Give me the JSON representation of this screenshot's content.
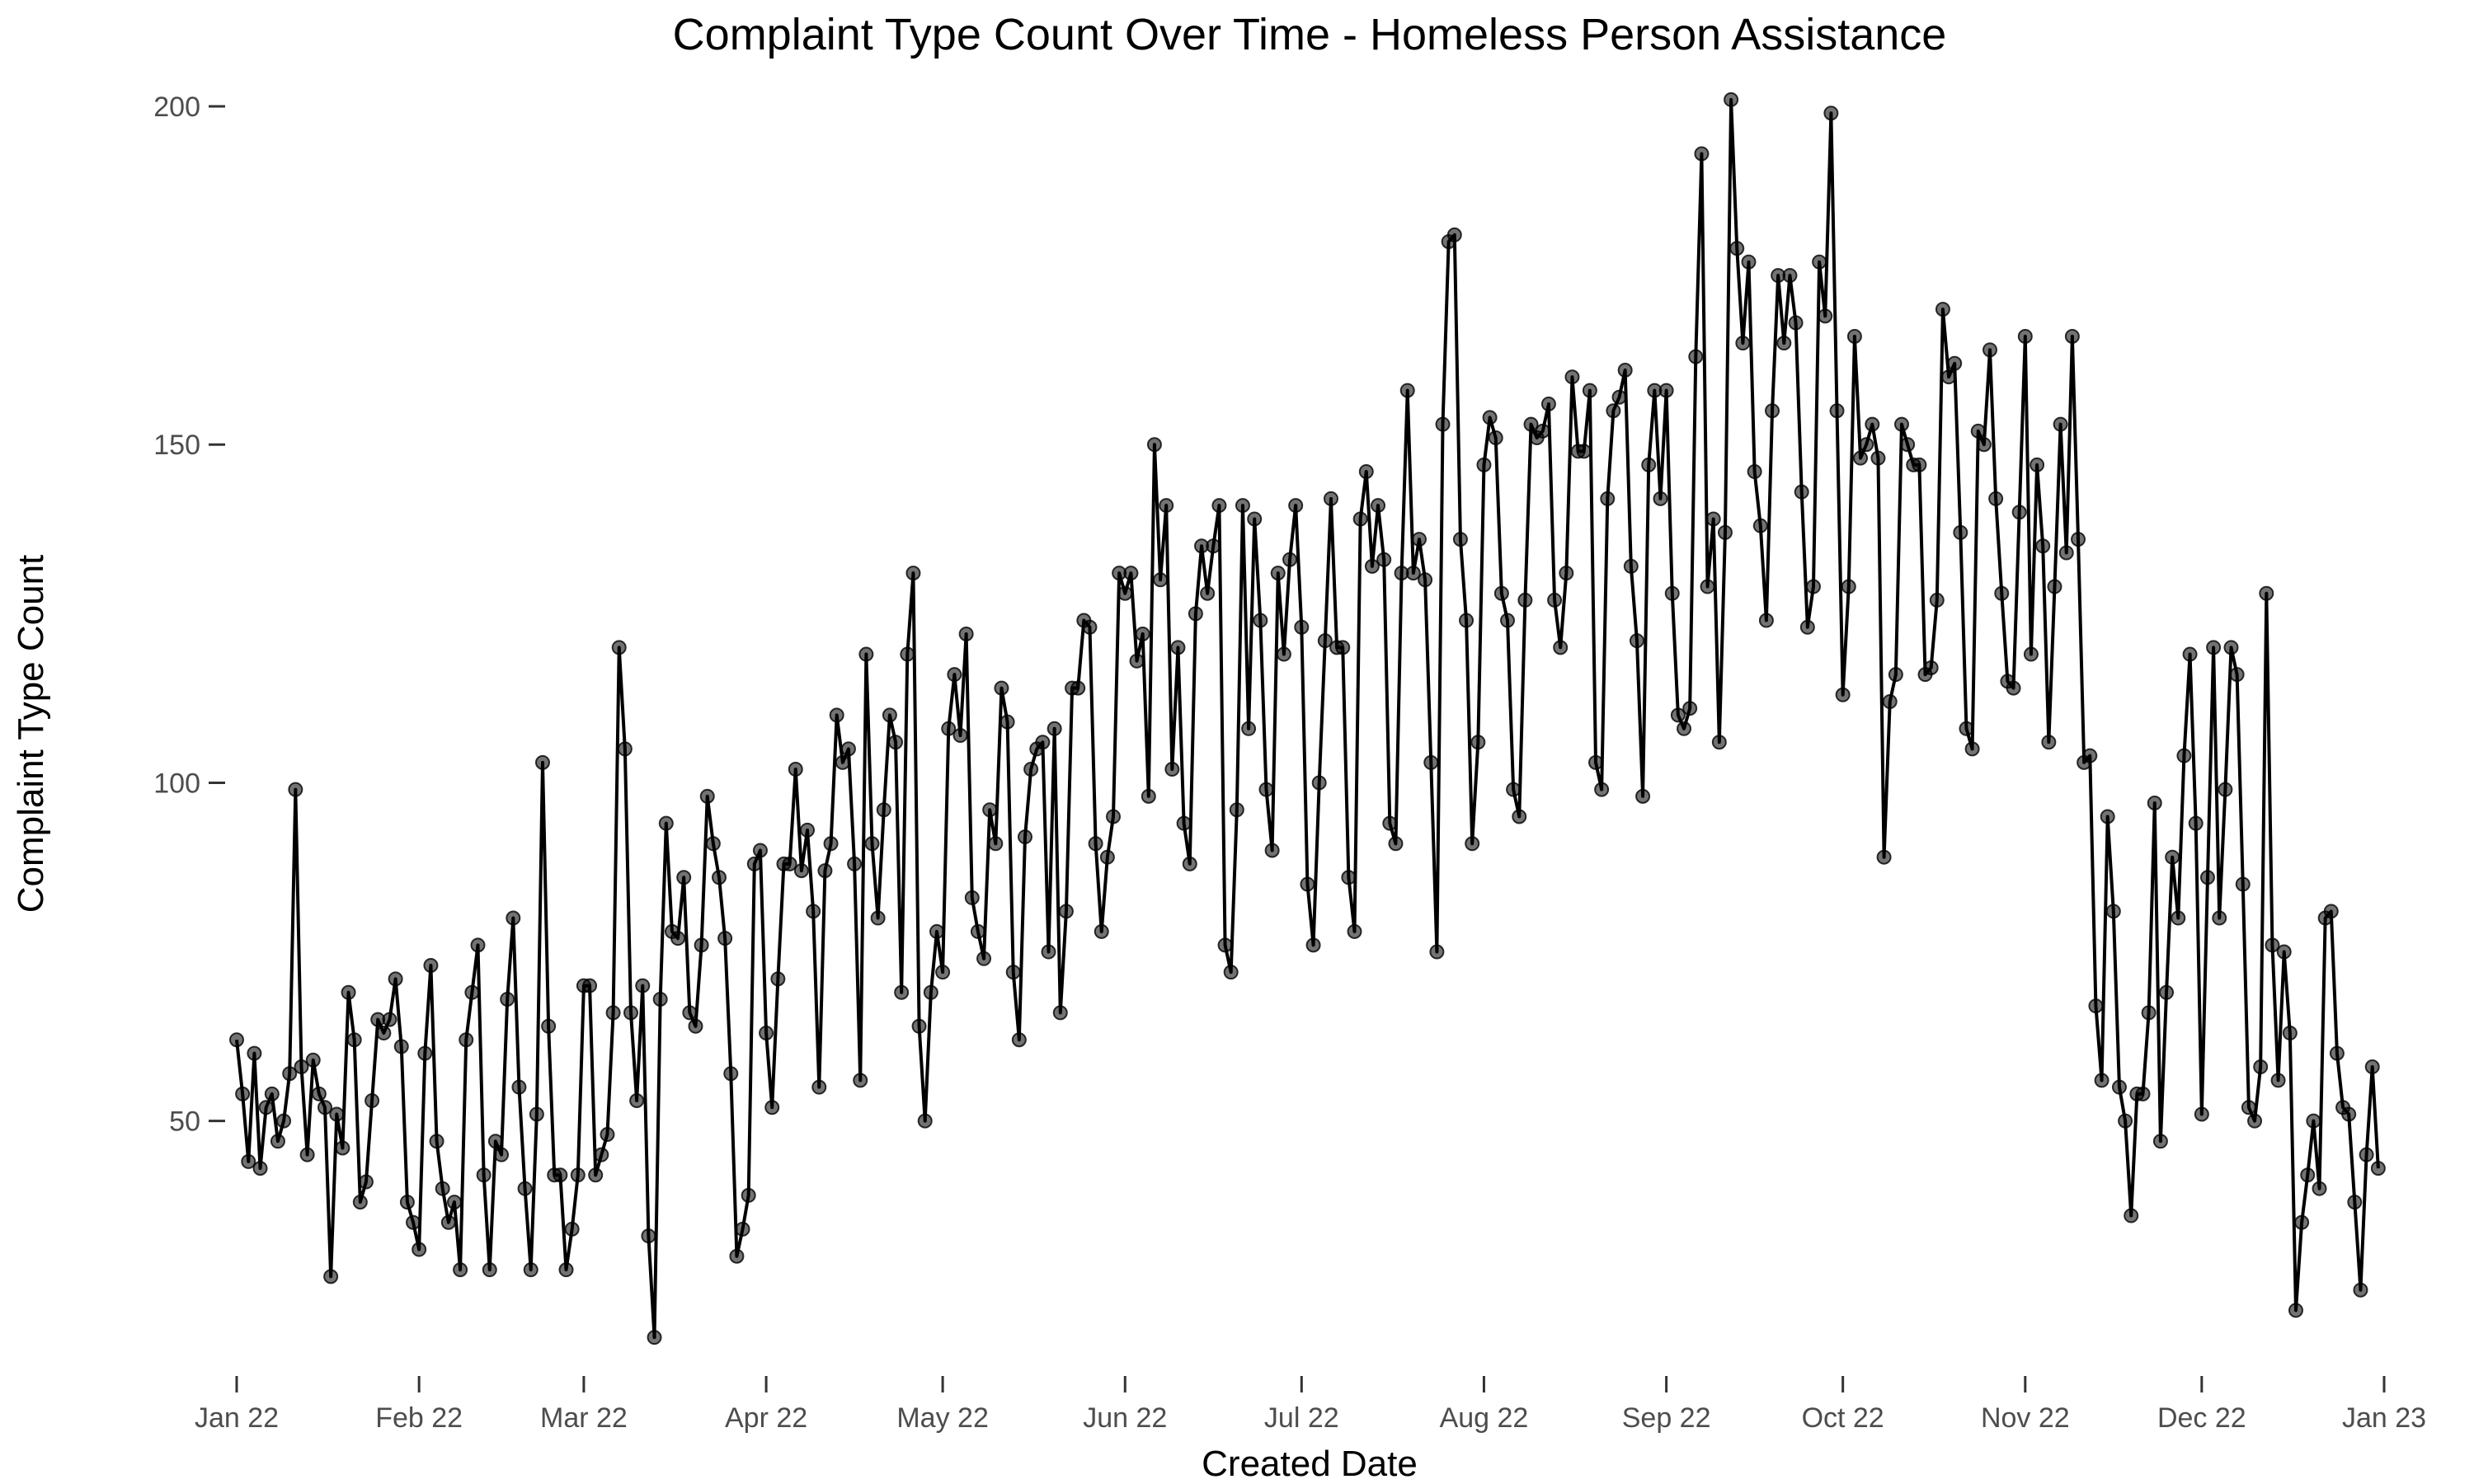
{
  "chart_data": {
    "type": "line",
    "title": "Complaint Type Count Over Time - Homeless Person Assistance",
    "xlabel": "Created Date",
    "ylabel": "Complaint Type Count",
    "x_range": [
      "2022-01-01",
      "2023-01-01"
    ],
    "ylim": [
      14,
      205
    ],
    "y_ticks": [
      50,
      100,
      150,
      200
    ],
    "x_ticks": [
      {
        "date": "2022-01-01",
        "label": "Jan 22"
      },
      {
        "date": "2022-02-01",
        "label": "Feb 22"
      },
      {
        "date": "2022-03-01",
        "label": "Mar 22"
      },
      {
        "date": "2022-04-01",
        "label": "Apr 22"
      },
      {
        "date": "2022-05-01",
        "label": "May 22"
      },
      {
        "date": "2022-06-01",
        "label": "Jun 22"
      },
      {
        "date": "2022-07-01",
        "label": "Jul 22"
      },
      {
        "date": "2022-08-01",
        "label": "Aug 22"
      },
      {
        "date": "2022-09-01",
        "label": "Sep 22"
      },
      {
        "date": "2022-10-01",
        "label": "Oct 22"
      },
      {
        "date": "2022-11-01",
        "label": "Nov 22"
      },
      {
        "date": "2022-12-01",
        "label": "Dec 22"
      },
      {
        "date": "2023-01-01",
        "label": "Jan 23"
      }
    ],
    "grid": false,
    "legend": "none",
    "line_color": "#000000",
    "point_color": "#555555",
    "series": [
      {
        "start_date": "2022-01-01",
        "interval": "1 day",
        "values": [
          62,
          54,
          44,
          60,
          43,
          52,
          54,
          47,
          50,
          57,
          99,
          58,
          45,
          59,
          54,
          52,
          27,
          51,
          46,
          69,
          62,
          38,
          41,
          53,
          65,
          63,
          65,
          71,
          61,
          38,
          35,
          31,
          60,
          73,
          47,
          40,
          35,
          38,
          28,
          62,
          69,
          76,
          42,
          28,
          47,
          45,
          68,
          80,
          55,
          40,
          28,
          51,
          103,
          64,
          42,
          42,
          28,
          34,
          42,
          70,
          70,
          42,
          45,
          48,
          66,
          120,
          105,
          66,
          53,
          70,
          33,
          18,
          68,
          94,
          78,
          77,
          86,
          66,
          64,
          76,
          98,
          91,
          86,
          77,
          57,
          30,
          34,
          39,
          88,
          90,
          63,
          52,
          71,
          88,
          88,
          102,
          87,
          93,
          81,
          55,
          87,
          91,
          110,
          103,
          105,
          88,
          56,
          119,
          91,
          80,
          96,
          110,
          106,
          69,
          119,
          131,
          64,
          50,
          69,
          78,
          72,
          108,
          116,
          107,
          122,
          83,
          78,
          74,
          96,
          91,
          114,
          109,
          72,
          62,
          92,
          102,
          105,
          106,
          75,
          108,
          66,
          81,
          114,
          114,
          124,
          123,
          91,
          78,
          89,
          95,
          131,
          128,
          131,
          118,
          122,
          98,
          150,
          130,
          141,
          102,
          120,
          94,
          88,
          125,
          135,
          128,
          135,
          141,
          76,
          72,
          96,
          141,
          108,
          139,
          124,
          99,
          90,
          131,
          119,
          133,
          141,
          123,
          85,
          76,
          100,
          121,
          142,
          120,
          120,
          86,
          78,
          139,
          146,
          132,
          141,
          133,
          94,
          91,
          131,
          158,
          131,
          136,
          130,
          103,
          75,
          153,
          180,
          181,
          136,
          124,
          91,
          106,
          147,
          154,
          151,
          128,
          124,
          99,
          95,
          127,
          153,
          151,
          152,
          156,
          127,
          120,
          131,
          160,
          149,
          149,
          158,
          103,
          99,
          142,
          155,
          157,
          161,
          132,
          121,
          98,
          147,
          158,
          142,
          158,
          128,
          110,
          108,
          111,
          163,
          193,
          129,
          139,
          106,
          137,
          201,
          179,
          165,
          177,
          146,
          138,
          124,
          155,
          175,
          165,
          175,
          168,
          143,
          123,
          129,
          177,
          169,
          199,
          155,
          113,
          129,
          166,
          148,
          150,
          153,
          148,
          89,
          112,
          116,
          153,
          150,
          147,
          147,
          116,
          117,
          127,
          170,
          160,
          162,
          137,
          108,
          105,
          152,
          150,
          164,
          142,
          128,
          115,
          114,
          140,
          166,
          119,
          147,
          135,
          106,
          129,
          153,
          134,
          166,
          136,
          103,
          104,
          67,
          56,
          95,
          81,
          55,
          50,
          36,
          54,
          54,
          66,
          97,
          47,
          69,
          89,
          80,
          104,
          119,
          94,
          51,
          86,
          120,
          80,
          99,
          120,
          116,
          85,
          52,
          50,
          58,
          128,
          76,
          56,
          75,
          63,
          22,
          35,
          42,
          50,
          40,
          80,
          81,
          60,
          52,
          51,
          38,
          25,
          45,
          58,
          43
        ]
      }
    ]
  }
}
